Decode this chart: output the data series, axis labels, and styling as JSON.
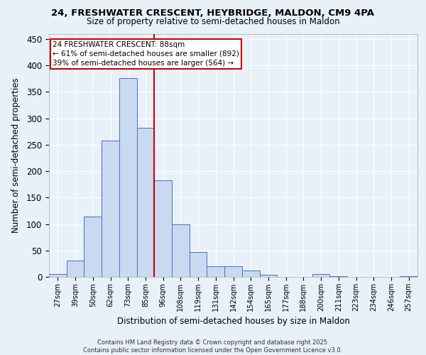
{
  "title_line1": "24, FRESHWATER CRESCENT, HEYBRIDGE, MALDON, CM9 4PA",
  "title_line2": "Size of property relative to semi-detached houses in Maldon",
  "xlabel": "Distribution of semi-detached houses by size in Maldon",
  "ylabel": "Number of semi-detached properties",
  "categories": [
    "27sqm",
    "39sqm",
    "50sqm",
    "62sqm",
    "73sqm",
    "85sqm",
    "96sqm",
    "108sqm",
    "119sqm",
    "131sqm",
    "142sqm",
    "154sqm",
    "165sqm",
    "177sqm",
    "188sqm",
    "200sqm",
    "211sqm",
    "223sqm",
    "234sqm",
    "246sqm",
    "257sqm"
  ],
  "values": [
    5,
    31,
    114,
    258,
    376,
    282,
    182,
    100,
    47,
    20,
    20,
    12,
    4,
    0,
    0,
    5,
    2,
    0,
    0,
    0,
    2
  ],
  "bar_color": "#c9d9f0",
  "bar_edge_color": "#4472c4",
  "property_bin_index": 5,
  "annotation_title": "24 FRESHWATER CRESCENT: 88sqm",
  "annotation_line1": "← 61% of semi-detached houses are smaller (892)",
  "annotation_line2": "39% of semi-detached houses are larger (564) →",
  "vline_color": "#cc0000",
  "annotation_box_color": "#cc0000",
  "background_color": "#e8f0f8",
  "grid_color": "#ffffff",
  "ylim": [
    0,
    460
  ],
  "yticks": [
    0,
    50,
    100,
    150,
    200,
    250,
    300,
    350,
    400,
    450
  ],
  "footer_line1": "Contains HM Land Registry data © Crown copyright and database right 2025.",
  "footer_line2": "Contains public sector information licensed under the Open Government Licence v3.0."
}
